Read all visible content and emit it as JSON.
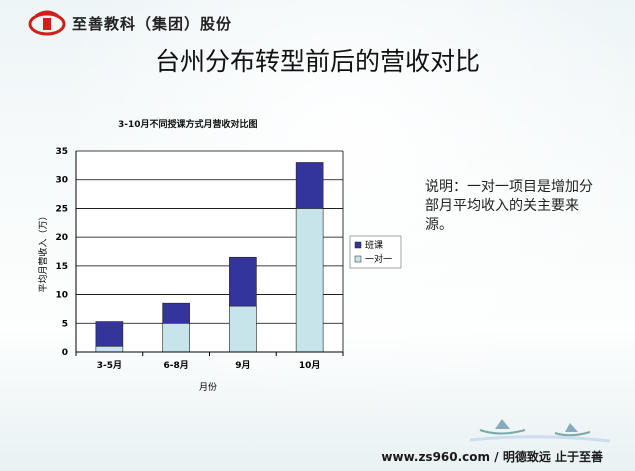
{
  "header": {
    "brand": "至善教科（集团）股份",
    "logo_icon": "zs-logo-icon",
    "accent_color": "#d0201a"
  },
  "slide_title": "台州分布转型前后的营收对比",
  "note": "说明：一对一项目是增加分部月平均收入的关主要来源。",
  "footer": {
    "site": "www.zs960.com",
    "separator": "/",
    "slogan": "明德致远 止于至善"
  },
  "chart_data": {
    "type": "bar",
    "stacked": true,
    "title": "3-10月不同授课方式月营收对比图",
    "xlabel": "月份",
    "ylabel": "平均月营收入（万）",
    "categories": [
      "3-5月",
      "6-8月",
      "9月",
      "10月"
    ],
    "series": [
      {
        "name": "一对一",
        "values": [
          1,
          5,
          8,
          25
        ],
        "color": "#c6e4ea"
      },
      {
        "name": "班课",
        "values": [
          4.3,
          3.5,
          8.5,
          8
        ],
        "color": "#33349c"
      }
    ],
    "legend_labels": [
      "班课",
      "一对一"
    ],
    "ylim": [
      0,
      35
    ],
    "yticks": [
      0,
      5,
      10,
      15,
      20,
      25,
      30,
      35
    ],
    "grid": true,
    "legend_position": "right"
  }
}
